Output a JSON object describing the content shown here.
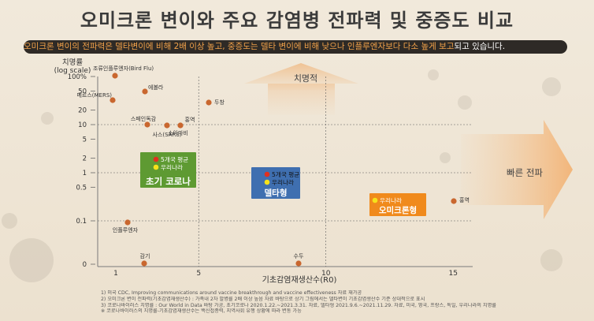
{
  "title": "오미크론 변이와 주요 감염병 전파력 및 중증도 비교",
  "subtitle": {
    "highlight": "오미크론 변이의 전파력은 델타변이에 비해 2배 이상 높고, 중증도는 델타 변이에 비해 낮으나 인플루엔자보다 다소 높게 보고",
    "rest": "되고 있습니다."
  },
  "colors": {
    "orange": "#f08a1c",
    "blue": "#3f6fb0",
    "green": "#5e9a32",
    "red": "#e1301e",
    "yellow": "#f6e21a",
    "dot": "#c9672f"
  },
  "chart_data": {
    "type": "scatter",
    "xlabel": "기초감염재생산수(R0)",
    "ylabel": "치명률\n(log scale)",
    "x_ticks": [
      "1",
      "5",
      "10",
      "15"
    ],
    "y_ticks": [
      "100%",
      "50",
      "20",
      "10",
      "5",
      "2",
      "1",
      "0.5",
      "0.1",
      "0"
    ],
    "points": [
      {
        "label": "조류인플루엔자(Bird Flu)",
        "x": 1.7,
        "y": 60
      },
      {
        "label": "메르스(MERS)",
        "x": 0.7,
        "y": 35
      },
      {
        "label": "에볼라",
        "x": 2.0,
        "y": 50
      },
      {
        "label": "두창",
        "x": 4.8,
        "y": 30
      },
      {
        "label": "스페인독감",
        "x": 2.0,
        "y": 10
      },
      {
        "label": "소아마비",
        "x": 3.0,
        "y": 10
      },
      {
        "label": "홍역",
        "x": 3.5,
        "y": 10
      },
      {
        "label": "사스(SARS)",
        "x": 3.0,
        "y": 10
      },
      {
        "label": "인플루엔자",
        "x": 1.3,
        "y": 0.1
      },
      {
        "label": "감기",
        "x": 2.0,
        "y": 0
      },
      {
        "label": "수두",
        "x": 8.5,
        "y": 0
      },
      {
        "label": "홍역",
        "x": 15.0,
        "y": 0.25
      }
    ],
    "groups": [
      {
        "name": "초기 코로나",
        "items": [
          {
            "label": "5개국 평균",
            "dot": "red"
          },
          {
            "label": "우리나라",
            "dot": "yellow"
          }
        ]
      },
      {
        "name": "델타형",
        "items": [
          {
            "label": "5개국 평균",
            "dot": "red"
          },
          {
            "label": "우리나라",
            "dot": "yellow"
          }
        ]
      },
      {
        "name": "오미크론형",
        "items": [
          {
            "label": "우리나라",
            "dot": "yellow"
          }
        ]
      }
    ],
    "annotations": {
      "up_arrow": "치명적",
      "right_arrow": "빠른 전파"
    }
  },
  "notes": [
    "1) 미국 CDC, Improving communications around vaccine breakthrough and vaccine effectiveness 자료 재가공",
    "2) 오미크론 변이 전파력(기초감염재생산수) : 가족내 2차 발병률 2배 이상 높음 자료 바탕으로 상기 그림에서는 델타변이 기초감염생산수 기준 상대적으로 표시",
    "3) 코로나바이러스 치명률 : Our World in Data 바탕 가공, 초기코로나 2020.1.22.~2021.3.31. 자료, 델타형 2021.9.6.~2021.11.29. 자료, 미국, 영국, 프랑스, 독일, 우리나라의 치명률",
    "※ 코로나바이러스의 치명률-기초감염재생산수는 백신접종력, 지역사회 유행 상황에 따라 변동 가능"
  ]
}
